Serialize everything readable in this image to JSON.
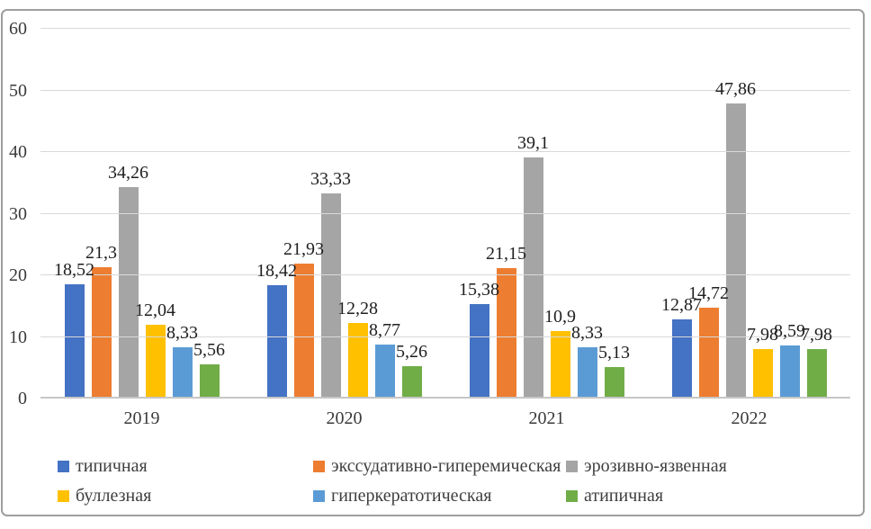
{
  "chart_data": {
    "type": "bar",
    "title": "",
    "xlabel": "",
    "ylabel": "",
    "categories": [
      "2019",
      "2020",
      "2021",
      "2022"
    ],
    "series": [
      {
        "name": "типичная",
        "color": "#4472C4",
        "values": [
          18.52,
          18.42,
          15.38,
          12.87
        ],
        "labels": [
          "18,52",
          "18,42",
          "15,38",
          "12,87"
        ]
      },
      {
        "name": "экссудативно-гиперемическая",
        "color": "#ED7D31",
        "values": [
          21.3,
          21.93,
          21.15,
          14.72
        ],
        "labels": [
          "21,3",
          "21,93",
          "21,15",
          "14,72"
        ]
      },
      {
        "name": "эрозивно-язвенная",
        "color": "#A5A5A5",
        "values": [
          34.26,
          33.33,
          39.1,
          47.86
        ],
        "labels": [
          "34,26",
          "33,33",
          "39,1",
          "47,86"
        ]
      },
      {
        "name": "буллезная",
        "color": "#FFC000",
        "values": [
          12.04,
          12.28,
          10.9,
          7.98
        ],
        "labels": [
          "12,04",
          "12,28",
          "10,9",
          "7,98"
        ]
      },
      {
        "name": "гиперкератотическая",
        "color": "#5B9BD5",
        "values": [
          8.33,
          8.77,
          8.33,
          8.59
        ],
        "labels": [
          "8,33",
          "8,77",
          "8,33",
          "8,59"
        ]
      },
      {
        "name": "атипичная",
        "color": "#70AD47",
        "values": [
          5.56,
          5.26,
          5.13,
          7.98
        ],
        "labels": [
          "5,56",
          "5,26",
          "5,13",
          "7,98"
        ]
      }
    ],
    "y_axis": {
      "min": 0,
      "max": 60,
      "step": 10,
      "ticks": [
        "0",
        "10",
        "20",
        "30",
        "40",
        "50",
        "60"
      ]
    },
    "grid": true,
    "legend_position": "bottom"
  }
}
